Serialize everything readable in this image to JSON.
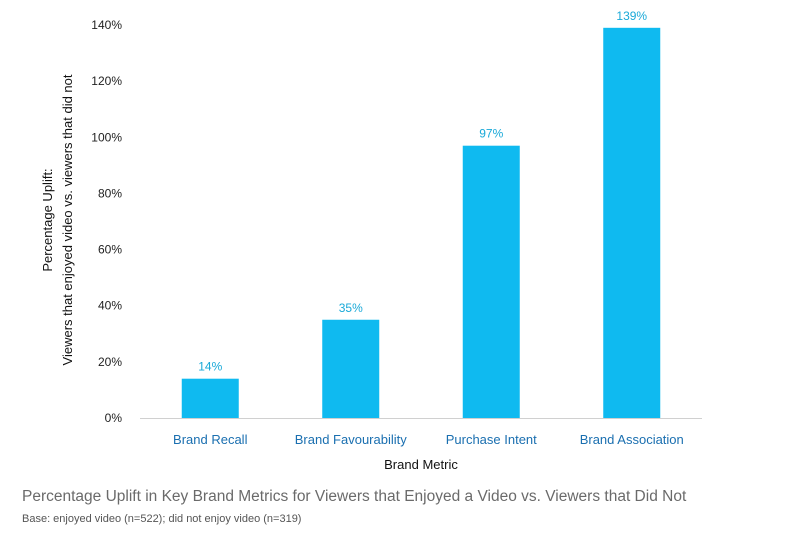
{
  "chart_data": {
    "type": "bar",
    "categories": [
      "Brand Recall",
      "Brand Favourability",
      "Purchase Intent",
      "Brand Association"
    ],
    "values": [
      14,
      35,
      97,
      139
    ],
    "value_labels": [
      "14%",
      "35%",
      "97%",
      "139%"
    ],
    "xlabel": "Brand Metric",
    "ylabel_line1": "Percentage Uplift:",
    "ylabel_line2": "Viewers that enjoyed video vs. viewers that did not",
    "ylim": [
      0,
      140
    ],
    "y_ticks": [
      0,
      20,
      40,
      60,
      80,
      100,
      120,
      140
    ],
    "y_tick_labels": [
      "0%",
      "20%",
      "40%",
      "60%",
      "80%",
      "100%",
      "120%",
      "140%"
    ],
    "grid": false,
    "bar_color": "#0fbaf0"
  },
  "caption": "Percentage Uplift in Key Brand Metrics for Viewers that Enjoyed a Video vs. Viewers that Did Not",
  "base_note": "Base: enjoyed video (n=522); did not enjoy video (n=319)"
}
